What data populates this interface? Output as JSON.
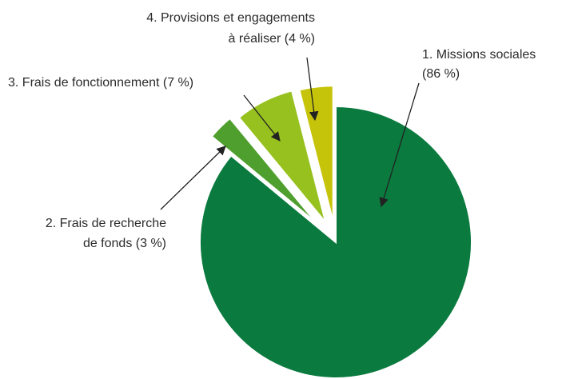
{
  "chart_data": {
    "type": "pie",
    "exploded": true,
    "slices": [
      {
        "id": "missions-sociales",
        "label_lines": [
          "1. Missions sociales",
          "(86 %)"
        ],
        "value": 86,
        "color": "#0a7a3e"
      },
      {
        "id": "frais-recherche-fonds",
        "label_lines": [
          "2. Frais de recherche",
          "de fonds (3 %)"
        ],
        "value": 3,
        "color": "#4f9f2e"
      },
      {
        "id": "frais-fonctionnement",
        "label_lines": [
          "3. Frais de fonctionnement (7 %)"
        ],
        "value": 7,
        "color": "#96c11f"
      },
      {
        "id": "provisions-engagements",
        "label_lines": [
          "4. Provisions et engagements",
          "à réaliser (4 %)"
        ],
        "value": 4,
        "color": "#c6c40a"
      }
    ]
  }
}
